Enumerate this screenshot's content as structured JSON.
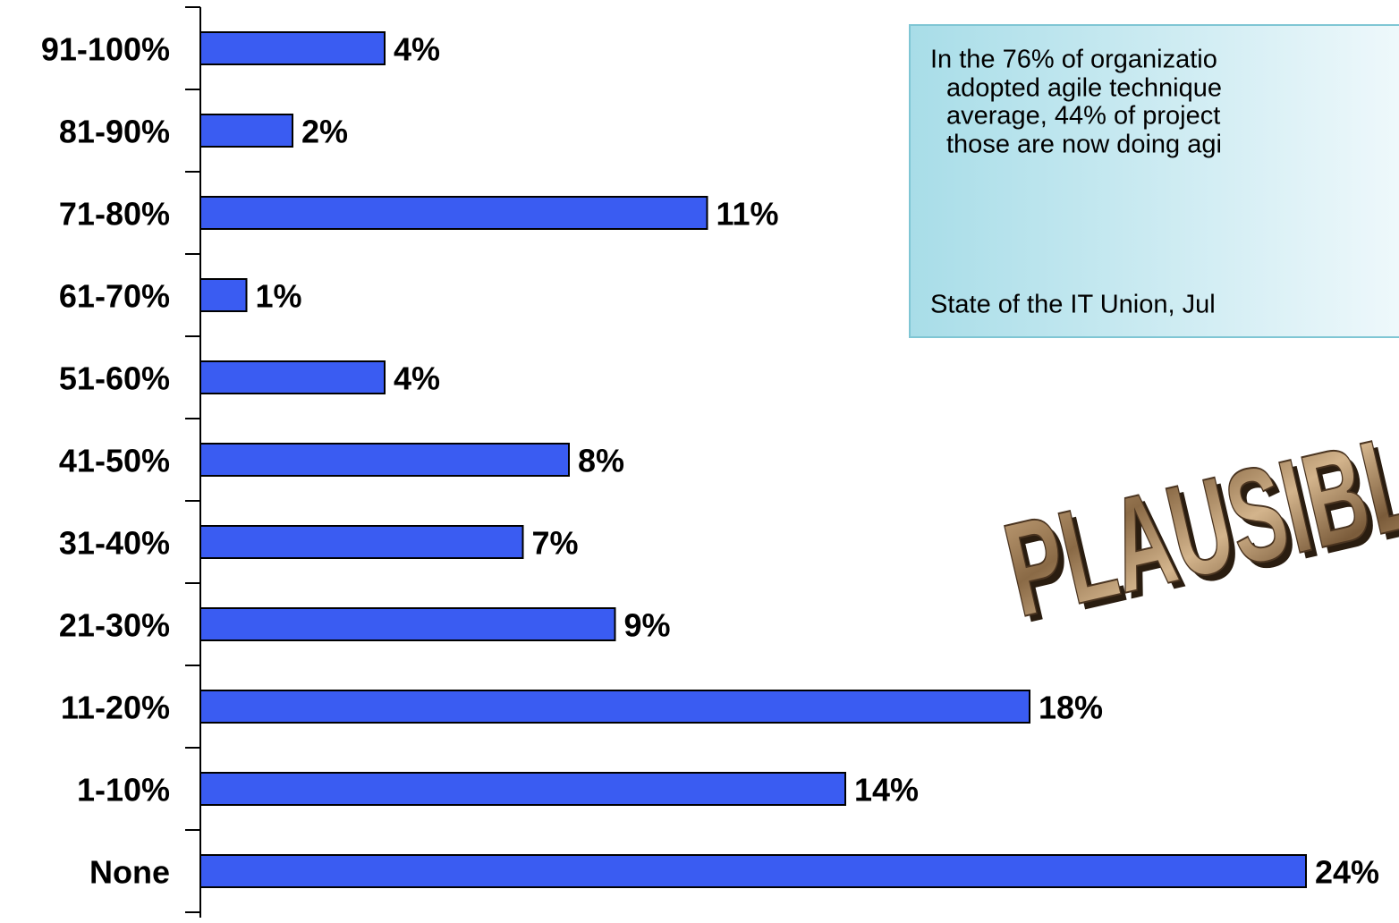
{
  "chart_data": {
    "type": "bar",
    "orientation": "horizontal",
    "categories": [
      "91-100%",
      "81-90%",
      "71-80%",
      "61-70%",
      "51-60%",
      "41-50%",
      "31-40%",
      "21-30%",
      "11-20%",
      "1-10%",
      "None"
    ],
    "values": [
      4,
      2,
      11,
      1,
      4,
      8,
      7,
      9,
      18,
      14,
      24
    ],
    "value_labels": [
      "4%",
      "2%",
      "11%",
      "1%",
      "4%",
      "8%",
      "7%",
      "9%",
      "18%",
      "14%",
      "24%"
    ],
    "color": "#3a5cf2",
    "xlim": [
      0,
      24
    ],
    "annotation": {
      "lines": [
        "In the 76% of organizatio",
        "adopted agile technique",
        "average, 44% of project",
        "those are now doing agi"
      ],
      "source": "State of the IT Union, Jul"
    },
    "stamp": "PLAUSIBL"
  }
}
